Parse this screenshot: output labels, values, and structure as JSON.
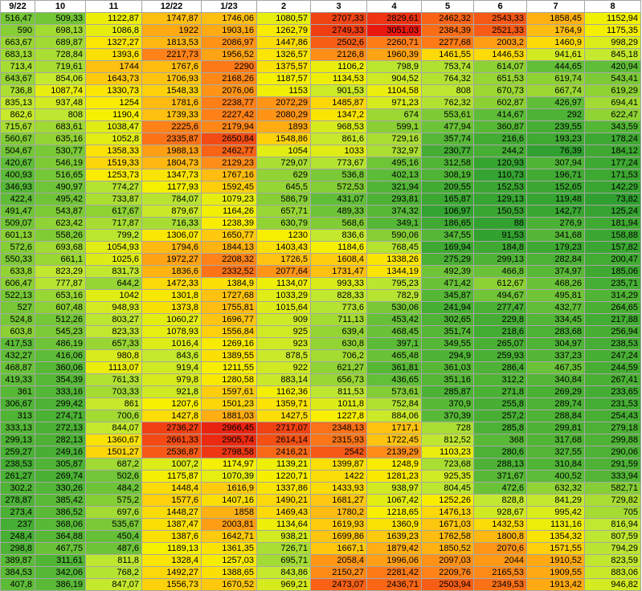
{
  "sheet": {
    "headers": [
      "9/22",
      "10",
      "11",
      "12/22",
      "1/23",
      "2",
      "3",
      "4",
      "5",
      "6",
      "7",
      "8"
    ],
    "rows": [
      [
        "516,47",
        "509,33",
        "1122,87",
        "1747,87",
        "1746,06",
        "1080,57",
        "2707,33",
        "2829,61",
        "2462,32",
        "2543,33",
        "1858,45",
        "1152,94"
      ],
      [
        "590",
        "698,13",
        "1086,8",
        "1922",
        "1903,16",
        "1262,79",
        "2749,33",
        "3051,03",
        "2384,39",
        "2521,33",
        "1764,9",
        "1175,35"
      ],
      [
        "663,67",
        "689,87",
        "1327,27",
        "1813,53",
        "2086,97",
        "1447,86",
        "2502,6",
        "2260,71",
        "2277,68",
        "2003,2",
        "1460,9",
        "998,29"
      ],
      [
        "683,13",
        "728,84",
        "1393,6",
        "2217,73",
        "1956,52",
        "1326,57",
        "2126,8",
        "1960,39",
        "1461,55",
        "1446,53",
        "941,61",
        "845,18"
      ],
      [
        "713,4",
        "719,61",
        "1744",
        "1767,6",
        "2290",
        "1375,57",
        "1106,2",
        "798,9",
        "753,74",
        "614,07",
        "444,65",
        "420,94"
      ],
      [
        "643,67",
        "854,06",
        "1643,73",
        "1706,93",
        "2168,26",
        "1187,57",
        "1134,53",
        "904,52",
        "764,32",
        "651,53",
        "619,74",
        "543,41"
      ],
      [
        "736,8",
        "1087,74",
        "1330,73",
        "1548,33",
        "2076,06",
        "1153",
        "901,53",
        "1104,58",
        "808",
        "670,73",
        "667,74",
        "619,29"
      ],
      [
        "835,13",
        "937,48",
        "1254",
        "1781,6",
        "2238,77",
        "2072,29",
        "1485,87",
        "971,23",
        "762,32",
        "602,87",
        "426,97",
        "694,41"
      ],
      [
        "862,6",
        "808",
        "1190,4",
        "1739,33",
        "2227,42",
        "2080,29",
        "1347,2",
        "674",
        "553,61",
        "414,67",
        "292",
        "622,47"
      ],
      [
        "715,67",
        "683,61",
        "1038,47",
        "2225,6",
        "2179,94",
        "1893",
        "968,53",
        "599,1",
        "477,94",
        "360,87",
        "239,55",
        "343,59"
      ],
      [
        "560,67",
        "635,16",
        "1052,8",
        "2335,87",
        "2650,84",
        "1548,86",
        "861,6",
        "729,16",
        "357,74",
        "216,6",
        "193,23",
        "178,24"
      ],
      [
        "504,67",
        "530,77",
        "1358,33",
        "1988,13",
        "2462,77",
        "1054",
        "1033",
        "732,97",
        "230,77",
        "244,2",
        "76,39",
        "184,12"
      ],
      [
        "420,67",
        "546,19",
        "1519,33",
        "1804,73",
        "2129,23",
        "729,07",
        "773,67",
        "495,16",
        "312,58",
        "120,93",
        "307,94",
        "177,24"
      ],
      [
        "400,93",
        "516,65",
        "1253,73",
        "1347,73",
        "1767,16",
        "629",
        "536,8",
        "402,13",
        "308,19",
        "110,73",
        "196,71",
        "171,53"
      ],
      [
        "346,93",
        "490,97",
        "774,27",
        "1177,93",
        "1592,45",
        "645,5",
        "572,53",
        "321,94",
        "209,55",
        "152,53",
        "152,65",
        "142,29"
      ],
      [
        "422,4",
        "495,42",
        "733,87",
        "784,07",
        "1079,23",
        "586,79",
        "431,07",
        "293,81",
        "165,87",
        "129,13",
        "119,48",
        "73,82"
      ],
      [
        "491,47",
        "543,87",
        "617,67",
        "879,67",
        "1164,26",
        "657,71",
        "489,33",
        "374,32",
        "106,97",
        "150,53",
        "142,77",
        "125,24"
      ],
      [
        "509,07",
        "623,42",
        "717,87",
        "716,33",
        "1238,39",
        "630,79",
        "568,6",
        "349,1",
        "186,65",
        "88",
        "276,9",
        "181,94"
      ],
      [
        "601,13",
        "558,26",
        "799,2",
        "1306,07",
        "1650,77",
        "1230",
        "836,6",
        "590,06",
        "347,55",
        "91,53",
        "341,68",
        "158,88"
      ],
      [
        "572,6",
        "693,68",
        "1054,93",
        "1794,6",
        "1844,13",
        "1403,43",
        "1184,6",
        "768,45",
        "169,94",
        "184,8",
        "179,23",
        "157,82"
      ],
      [
        "550,33",
        "661,1",
        "1025,6",
        "1972,27",
        "2208,32",
        "1726,5",
        "1608,4",
        "1338,26",
        "275,29",
        "299,13",
        "282,84",
        "200,47"
      ],
      [
        "633,8",
        "823,29",
        "831,73",
        "1836,6",
        "2332,52",
        "2077,64",
        "1731,47",
        "1344,19",
        "492,39",
        "466,8",
        "374,97",
        "185,06"
      ],
      [
        "606,47",
        "777,87",
        "644,2",
        "1472,33",
        "1384,9",
        "1134,07",
        "993,33",
        "795,23",
        "471,42",
        "612,67",
        "468,26",
        "235,71"
      ],
      [
        "522,13",
        "653,16",
        "1042",
        "1301,8",
        "1727,68",
        "1033,29",
        "828,33",
        "782,9",
        "345,87",
        "494,67",
        "495,81",
        "314,29"
      ],
      [
        "527",
        "607,48",
        "948,93",
        "1373,8",
        "1755,81",
        "1015,64",
        "773,6",
        "530,06",
        "241,94",
        "277,47",
        "432,77",
        "264,65"
      ],
      [
        "524,8",
        "512,26",
        "803,27",
        "1060,27",
        "1696,77",
        "909",
        "711,13",
        "453,42",
        "302,65",
        "229,8",
        "334,45",
        "217,88"
      ],
      [
        "603,8",
        "545,23",
        "823,33",
        "1078,93",
        "1556,84",
        "925",
        "639,4",
        "468,45",
        "351,74",
        "218,6",
        "283,68",
        "256,94"
      ],
      [
        "417,53",
        "486,19",
        "657,33",
        "1016,4",
        "1269,16",
        "923",
        "630,8",
        "397,1",
        "349,55",
        "265,07",
        "304,97",
        "238,53"
      ],
      [
        "432,27",
        "416,06",
        "980,8",
        "843,6",
        "1389,55",
        "878,5",
        "706,2",
        "465,48",
        "294,9",
        "259,93",
        "337,23",
        "247,24"
      ],
      [
        "468,87",
        "360,06",
        "1113,07",
        "919,4",
        "1211,55",
        "922",
        "621,27",
        "361,81",
        "361,03",
        "286,4",
        "467,35",
        "244,59"
      ],
      [
        "419,33",
        "354,39",
        "761,33",
        "979,8",
        "1280,58",
        "883,14",
        "656,73",
        "436,65",
        "351,16",
        "312,2",
        "340,84",
        "267,41"
      ],
      [
        "361",
        "333,16",
        "703,33",
        "921,8",
        "1597,61",
        "1162,36",
        "811,53",
        "573,61",
        "285,87",
        "271,8",
        "269,29",
        "233,65"
      ],
      [
        "306,67",
        "299,42",
        "861",
        "1207,6",
        "1501,23",
        "1359,71",
        "1011,8",
        "752,84",
        "370,9",
        "255,8",
        "289,74",
        "231,53"
      ],
      [
        "313",
        "274,71",
        "700,6",
        "1427,8",
        "1881,03",
        "1427,5",
        "1227,8",
        "884,06",
        "370,39",
        "257,2",
        "288,84",
        "254,43"
      ],
      [
        "333,13",
        "272,13",
        "844,07",
        "2736,27",
        "2966,45",
        "2717,07",
        "2348,13",
        "1717,1",
        "728",
        "285,8",
        "299,81",
        "279,18"
      ],
      [
        "299,13",
        "282,13",
        "1360,67",
        "2661,33",
        "2905,74",
        "2614,14",
        "2315,93",
        "1722,45",
        "812,52",
        "368",
        "317,68",
        "299,88"
      ],
      [
        "259,27",
        "249,16",
        "1501,27",
        "2536,87",
        "2798,58",
        "2416,21",
        "2542",
        "2139,29",
        "1103,23",
        "280,6",
        "327,55",
        "290,06"
      ],
      [
        "238,53",
        "305,87",
        "687,2",
        "1007,2",
        "1174,97",
        "1139,21",
        "1399,87",
        "1248,9",
        "723,68",
        "288,13",
        "310,84",
        "291,59"
      ],
      [
        "261,27",
        "269,74",
        "502,6",
        "1175,87",
        "1070,39",
        "1220,71",
        "1422",
        "1281,23",
        "925,35",
        "371,67",
        "400,52",
        "333,94"
      ],
      [
        "302,2",
        "330,26",
        "484,2",
        "1448,4",
        "1616,9",
        "1337,86",
        "1433,93",
        "938,97",
        "804,45",
        "472,6",
        "632,32",
        "582,71"
      ],
      [
        "278,87",
        "385,42",
        "575,2",
        "1577,6",
        "1407,16",
        "1490,21",
        "1681,27",
        "1067,42",
        "1252,26",
        "828,8",
        "841,29",
        "729,82"
      ],
      [
        "273,4",
        "386,52",
        "697,6",
        "1448,27",
        "1858",
        "1469,43",
        "1780,2",
        "1218,65",
        "1476,13",
        "928,67",
        "995,42",
        "705"
      ],
      [
        "237",
        "368,06",
        "535,67",
        "1387,47",
        "2003,81",
        "1134,64",
        "1619,93",
        "1360,9",
        "1671,03",
        "1432,53",
        "1131,16",
        "816,94"
      ],
      [
        "248,4",
        "364,88",
        "450,4",
        "1387,6",
        "1642,71",
        "938,21",
        "1699,86",
        "1639,23",
        "1762,58",
        "1800,8",
        "1354,32",
        "807,59"
      ],
      [
        "298,8",
        "467,75",
        "487,6",
        "1189,13",
        "1361,35",
        "726,71",
        "1667,1",
        "1879,42",
        "1850,52",
        "2070,6",
        "1571,55",
        "794,29"
      ],
      [
        "389,87",
        "311,61",
        "811,8",
        "1328,4",
        "1257,03",
        "695,71",
        "2058,4",
        "1996,06",
        "2097,03",
        "2044",
        "1910,52",
        "823,59"
      ],
      [
        "384,53",
        "342,06",
        "768,2",
        "1492,27",
        "1388,65",
        "843,86",
        "2150,27",
        "2281,42",
        "2209,76",
        "2165,53",
        "1909,55",
        "883,06"
      ],
      [
        "407,8",
        "386,19",
        "847,07",
        "1556,73",
        "1670,52",
        "969,21",
        "2473,07",
        "2436,71",
        "2503,94",
        "2349,53",
        "1913,42",
        "946,82"
      ]
    ]
  }
}
